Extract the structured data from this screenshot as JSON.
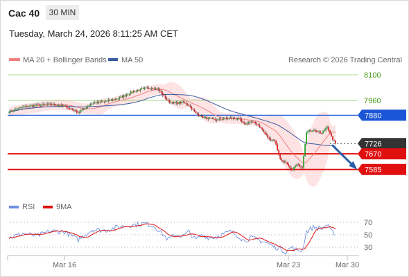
{
  "header": {
    "symbol": "Cac 40",
    "timeframe": "30 MIN",
    "datetime": "Tuesday, March 24, 2026 8:11:25 AM CET"
  },
  "legend": {
    "ma20_label": "MA 20 + Bollinger Bands",
    "ma50_label": "MA 50",
    "attribution": "Research © 2026 Trading Central"
  },
  "rsi_legend": {
    "rsi_label": "RSI",
    "ma_label": "9MA"
  },
  "colors": {
    "up": "#2ca02c",
    "down": "#e02020",
    "ma20": "#f08080",
    "ma50": "#3a5ba0",
    "band": "#fde0e0",
    "resistance": "#1a56d6",
    "support": "#e01010",
    "current": "#333333",
    "target_line": "#a6d88a",
    "arrow": "#2a5fa8",
    "rsi": "#6f8fe0",
    "rsi_ma": "#e01010"
  },
  "price_levels": [
    {
      "value": "8100",
      "kind": "target"
    },
    {
      "value": "7960",
      "kind": "target"
    },
    {
      "value": "7880",
      "kind": "resistance"
    },
    {
      "value": "7726",
      "kind": "current"
    },
    {
      "value": "7670",
      "kind": "support"
    },
    {
      "value": "7585",
      "kind": "support"
    }
  ],
  "rsi_axis": [
    "70",
    "50",
    "30"
  ],
  "x_axis": [
    "Mar 16",
    "Mar 23",
    "Mar 30"
  ],
  "chart_data": {
    "type": "candlestick",
    "ylim": [
      7470,
      8150
    ],
    "close_anchors": [
      [
        0,
        7900
      ],
      [
        10,
        7925
      ],
      [
        20,
        7935
      ],
      [
        30,
        7940
      ],
      [
        40,
        7930
      ],
      [
        50,
        7895
      ],
      [
        60,
        7945
      ],
      [
        70,
        7955
      ],
      [
        80,
        7975
      ],
      [
        90,
        8010
      ],
      [
        98,
        8025
      ],
      [
        104,
        8030
      ],
      [
        108,
        8020
      ],
      [
        115,
        7955
      ],
      [
        120,
        7945
      ],
      [
        126,
        7950
      ],
      [
        130,
        7935
      ],
      [
        135,
        7890
      ],
      [
        140,
        7870
      ],
      [
        145,
        7860
      ],
      [
        150,
        7855
      ],
      [
        160,
        7865
      ],
      [
        166,
        7860
      ],
      [
        170,
        7830
      ],
      [
        175,
        7845
      ],
      [
        180,
        7830
      ],
      [
        185,
        7780
      ],
      [
        188,
        7750
      ],
      [
        192,
        7745
      ],
      [
        196,
        7640
      ],
      [
        200,
        7620
      ],
      [
        204,
        7580
      ],
      [
        208,
        7610
      ],
      [
        212,
        7600
      ],
      [
        215,
        7790
      ],
      [
        220,
        7800
      ],
      [
        226,
        7780
      ],
      [
        230,
        7820
      ],
      [
        233,
        7760
      ],
      [
        236,
        7726
      ]
    ],
    "rsi_anchors": [
      [
        0,
        45
      ],
      [
        10,
        52
      ],
      [
        20,
        48
      ],
      [
        30,
        56
      ],
      [
        40,
        55
      ],
      [
        50,
        42
      ],
      [
        60,
        58
      ],
      [
        70,
        57
      ],
      [
        80,
        63
      ],
      [
        90,
        66
      ],
      [
        98,
        68
      ],
      [
        104,
        65
      ],
      [
        108,
        58
      ],
      [
        115,
        42
      ],
      [
        120,
        50
      ],
      [
        126,
        48
      ],
      [
        130,
        55
      ],
      [
        135,
        42
      ],
      [
        140,
        50
      ],
      [
        145,
        45
      ],
      [
        150,
        47
      ],
      [
        160,
        55
      ],
      [
        166,
        48
      ],
      [
        170,
        40
      ],
      [
        175,
        45
      ],
      [
        180,
        42
      ],
      [
        185,
        38
      ],
      [
        188,
        35
      ],
      [
        192,
        30
      ],
      [
        196,
        28
      ],
      [
        200,
        22
      ],
      [
        204,
        30
      ],
      [
        208,
        25
      ],
      [
        212,
        25
      ],
      [
        215,
        55
      ],
      [
        220,
        62
      ],
      [
        226,
        60
      ],
      [
        230,
        66
      ],
      [
        233,
        55
      ],
      [
        236,
        52
      ]
    ],
    "projection": {
      "from": 7726,
      "to": 7585
    },
    "rsi_ylim": [
      10,
      85
    ]
  }
}
